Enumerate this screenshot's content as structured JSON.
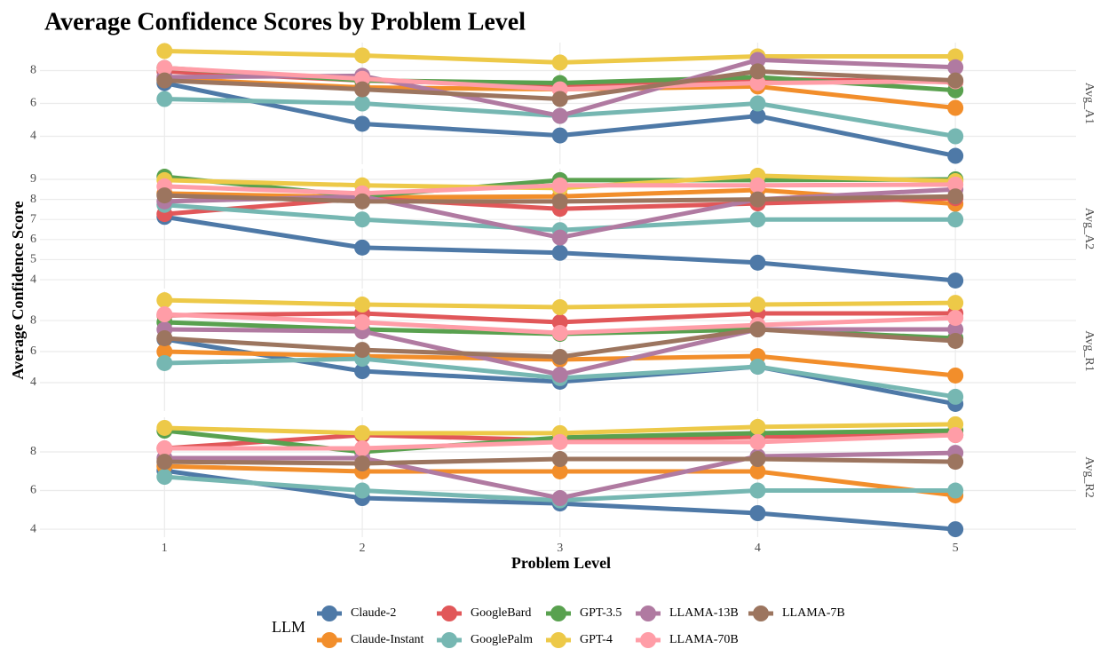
{
  "chart_data": {
    "type": "line",
    "title": "Average Confidence Scores by Problem Level",
    "xlabel": "Problem Level",
    "ylabel": "Average Confidence Score",
    "legend_title": "LLM",
    "x": [
      1,
      2,
      3,
      4,
      5
    ],
    "xlim": [
      0.37,
      5.61
    ],
    "xticks": [
      1,
      2,
      3,
      4,
      5
    ],
    "grid": true,
    "panels": [
      {
        "label": "Avg_A1",
        "ylim": [
          2.3,
          9.7
        ],
        "yticks": [
          4,
          6,
          8
        ],
        "series": [
          {
            "name": "Claude-2",
            "color": "#4e79a7",
            "values": [
              7.24,
              4.76,
              4.05,
              5.24,
              2.81
            ]
          },
          {
            "name": "Claude-Instant",
            "color": "#f28e2b",
            "values": [
              7.5,
              6.97,
              6.86,
              7.03,
              5.73
            ]
          },
          {
            "name": "GoogleBard",
            "color": "#e15759",
            "values": [
              7.95,
              7.4,
              7.08,
              7.5,
              7.3
            ]
          },
          {
            "name": "GooglePalm",
            "color": "#76b7b2",
            "values": [
              6.27,
              6.0,
              5.24,
              6.0,
              4.0
            ]
          },
          {
            "name": "GPT-3.5",
            "color": "#59a14f",
            "values": [
              8.16,
              7.4,
              7.24,
              7.6,
              6.8
            ]
          },
          {
            "name": "GPT-4",
            "color": "#edc948",
            "values": [
              9.19,
              8.92,
              8.49,
              8.86,
              8.86
            ]
          },
          {
            "name": "LLAMA-13B",
            "color": "#b07aa1",
            "values": [
              7.6,
              7.68,
              5.24,
              8.65,
              8.2
            ]
          },
          {
            "name": "LLAMA-70B",
            "color": "#ff9da7",
            "values": [
              8.16,
              7.5,
              6.86,
              7.24,
              7.35
            ]
          },
          {
            "name": "LLAMA-7B",
            "color": "#9c755f",
            "values": [
              7.4,
              6.86,
              6.27,
              7.95,
              7.4
            ]
          }
        ]
      },
      {
        "label": "Avg_A2",
        "ylim": [
          3.56,
          9.53
        ],
        "yticks": [
          4,
          5,
          6,
          7,
          8,
          9
        ],
        "series": [
          {
            "name": "Claude-2",
            "color": "#4e79a7",
            "values": [
              7.13,
              5.6,
              5.34,
              4.85,
              3.96
            ]
          },
          {
            "name": "Claude-Instant",
            "color": "#f28e2b",
            "values": [
              8.3,
              8.1,
              8.15,
              8.47,
              7.78
            ]
          },
          {
            "name": "GoogleBard",
            "color": "#e15759",
            "values": [
              7.27,
              8.06,
              7.53,
              7.8,
              8.06
            ]
          },
          {
            "name": "GooglePalm",
            "color": "#76b7b2",
            "values": [
              7.73,
              7.0,
              6.47,
              7.0,
              7.0
            ]
          },
          {
            "name": "GPT-3.5",
            "color": "#59a14f",
            "values": [
              9.13,
              8.15,
              8.96,
              8.96,
              9.0
            ]
          },
          {
            "name": "GPT-4",
            "color": "#edc948",
            "values": [
              8.96,
              8.7,
              8.56,
              9.18,
              8.91
            ]
          },
          {
            "name": "LLAMA-13B",
            "color": "#b07aa1",
            "values": [
              7.9,
              8.15,
              6.1,
              8.0,
              8.5
            ]
          },
          {
            "name": "LLAMA-70B",
            "color": "#ff9da7",
            "values": [
              8.65,
              8.3,
              8.7,
              8.7,
              8.74
            ]
          },
          {
            "name": "LLAMA-7B",
            "color": "#9c755f",
            "values": [
              8.2,
              7.9,
              7.9,
              8.0,
              8.15
            ]
          }
        ]
      },
      {
        "label": "Avg_R1",
        "ylim": [
          2.17,
          9.89
        ],
        "yticks": [
          4,
          6,
          8
        ],
        "series": [
          {
            "name": "Claude-2",
            "color": "#4e79a7",
            "values": [
              6.8,
              4.74,
              4.06,
              5.03,
              2.63
            ]
          },
          {
            "name": "Claude-Instant",
            "color": "#f28e2b",
            "values": [
              6.0,
              5.71,
              5.49,
              5.71,
              4.46
            ]
          },
          {
            "name": "GoogleBard",
            "color": "#e15759",
            "values": [
              8.34,
              8.46,
              7.89,
              8.46,
              8.46
            ]
          },
          {
            "name": "GooglePalm",
            "color": "#76b7b2",
            "values": [
              5.26,
              5.54,
              4.29,
              5.03,
              3.09
            ]
          },
          {
            "name": "GPT-3.5",
            "color": "#59a14f",
            "values": [
              7.89,
              7.43,
              7.14,
              7.43,
              6.86
            ]
          },
          {
            "name": "GPT-4",
            "color": "#edc948",
            "values": [
              9.31,
              9.03,
              8.86,
              9.03,
              9.14
            ]
          },
          {
            "name": "LLAMA-13B",
            "color": "#b07aa1",
            "values": [
              7.43,
              7.31,
              4.51,
              7.43,
              7.43
            ]
          },
          {
            "name": "LLAMA-70B",
            "color": "#ff9da7",
            "values": [
              8.4,
              7.89,
              7.2,
              7.71,
              8.17
            ]
          },
          {
            "name": "LLAMA-7B",
            "color": "#9c755f",
            "values": [
              6.86,
              6.11,
              5.66,
              7.43,
              6.69
            ]
          }
        ]
      },
      {
        "label": "Avg_R2",
        "ylim": [
          3.59,
          9.79
        ],
        "yticks": [
          4,
          6,
          8
        ],
        "series": [
          {
            "name": "Claude-2",
            "color": "#4e79a7",
            "values": [
              7.03,
              5.61,
              5.33,
              4.83,
              4.0
            ]
          },
          {
            "name": "Claude-Instant",
            "color": "#f28e2b",
            "values": [
              7.26,
              6.99,
              6.99,
              6.99,
              5.75
            ]
          },
          {
            "name": "GoogleBard",
            "color": "#e15759",
            "values": [
              8.18,
              8.87,
              8.6,
              8.78,
              8.87
            ]
          },
          {
            "name": "GooglePalm",
            "color": "#76b7b2",
            "values": [
              6.71,
              6.0,
              5.49,
              6.0,
              6.0
            ]
          },
          {
            "name": "GPT-3.5",
            "color": "#59a14f",
            "values": [
              9.1,
              8.0,
              8.74,
              8.97,
              9.1
            ]
          },
          {
            "name": "GPT-4",
            "color": "#edc948",
            "values": [
              9.24,
              8.97,
              8.97,
              9.29,
              9.43
            ]
          },
          {
            "name": "LLAMA-13B",
            "color": "#b07aa1",
            "values": [
              7.68,
              7.68,
              5.61,
              7.77,
              7.95
            ]
          },
          {
            "name": "LLAMA-70B",
            "color": "#ff9da7",
            "values": [
              8.18,
              8.18,
              8.51,
              8.51,
              8.87
            ]
          },
          {
            "name": "LLAMA-7B",
            "color": "#9c755f",
            "values": [
              7.49,
              7.4,
              7.63,
              7.63,
              7.49
            ]
          }
        ]
      }
    ]
  }
}
